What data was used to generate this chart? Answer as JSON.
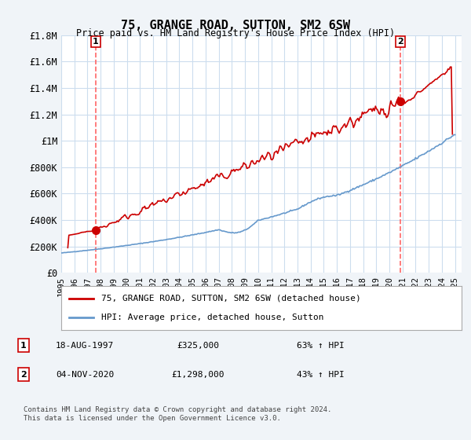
{
  "title": "75, GRANGE ROAD, SUTTON, SM2 6SW",
  "subtitle": "Price paid vs. HM Land Registry's House Price Index (HPI)",
  "ylim": [
    0,
    1800000
  ],
  "yticks": [
    0,
    200000,
    400000,
    600000,
    800000,
    1000000,
    1200000,
    1400000,
    1600000,
    1800000
  ],
  "ytick_labels": [
    "£0",
    "£200K",
    "£400K",
    "£600K",
    "£800K",
    "£1M",
    "£1.2M",
    "£1.4M",
    "£1.6M",
    "£1.8M"
  ],
  "xlim_start": 1995.0,
  "xlim_end": 2025.5,
  "xtick_years": [
    1995,
    1996,
    1997,
    1998,
    1999,
    2000,
    2001,
    2002,
    2003,
    2004,
    2005,
    2006,
    2007,
    2008,
    2009,
    2010,
    2011,
    2012,
    2013,
    2014,
    2015,
    2016,
    2017,
    2018,
    2019,
    2020,
    2021,
    2022,
    2023,
    2024,
    2025
  ],
  "marker1_x": 1997.63,
  "marker1_y": 325000,
  "marker1_label": "1",
  "marker1_date": "18-AUG-1997",
  "marker1_price": "£325,000",
  "marker1_hpi": "63% ↑ HPI",
  "marker2_x": 2020.84,
  "marker2_y": 1298000,
  "marker2_label": "2",
  "marker2_date": "04-NOV-2020",
  "marker2_price": "£1,298,000",
  "marker2_hpi": "43% ↑ HPI",
  "vline_color": "#ff6666",
  "vline_style": "dashed",
  "property_line_color": "#cc0000",
  "hpi_line_color": "#6699cc",
  "marker_color": "#cc0000",
  "legend_property": "75, GRANGE ROAD, SUTTON, SM2 6SW (detached house)",
  "legend_hpi": "HPI: Average price, detached house, Sutton",
  "footer1": "Contains HM Land Registry data © Crown copyright and database right 2024.",
  "footer2": "This data is licensed under the Open Government Licence v3.0.",
  "background_color": "#f0f4f8",
  "plot_bg_color": "#ffffff",
  "grid_color": "#ccddee"
}
